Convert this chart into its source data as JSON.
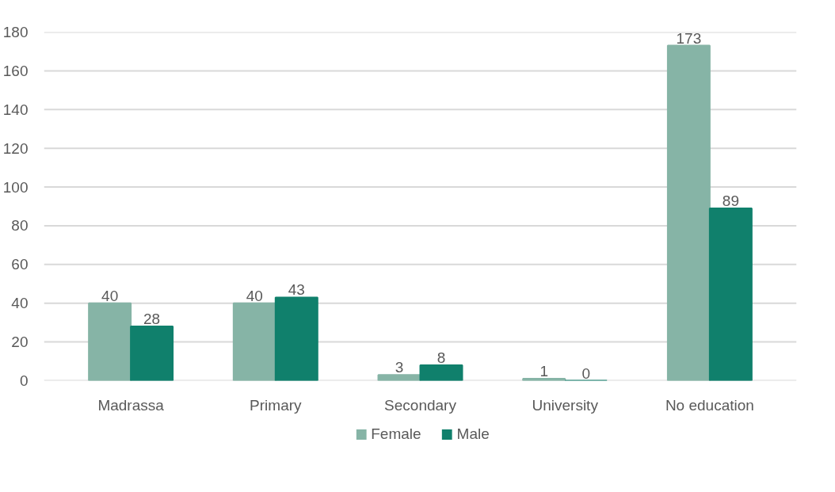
{
  "chart_data": {
    "type": "bar",
    "categories": [
      "Madrassa",
      "Primary",
      "Secondary",
      "University",
      "No education"
    ],
    "series": [
      {
        "name": "Female",
        "color": "#86b4a6",
        "values": [
          40,
          40,
          3,
          1,
          173
        ]
      },
      {
        "name": "Male",
        "color": "#10806c",
        "values": [
          28,
          43,
          8,
          0,
          89
        ]
      }
    ],
    "ylim": [
      0,
      180
    ],
    "yticks": [
      0,
      20,
      40,
      60,
      80,
      100,
      120,
      140,
      160,
      180
    ],
    "grid": "y",
    "legend": "bottom",
    "data_labels": true
  }
}
